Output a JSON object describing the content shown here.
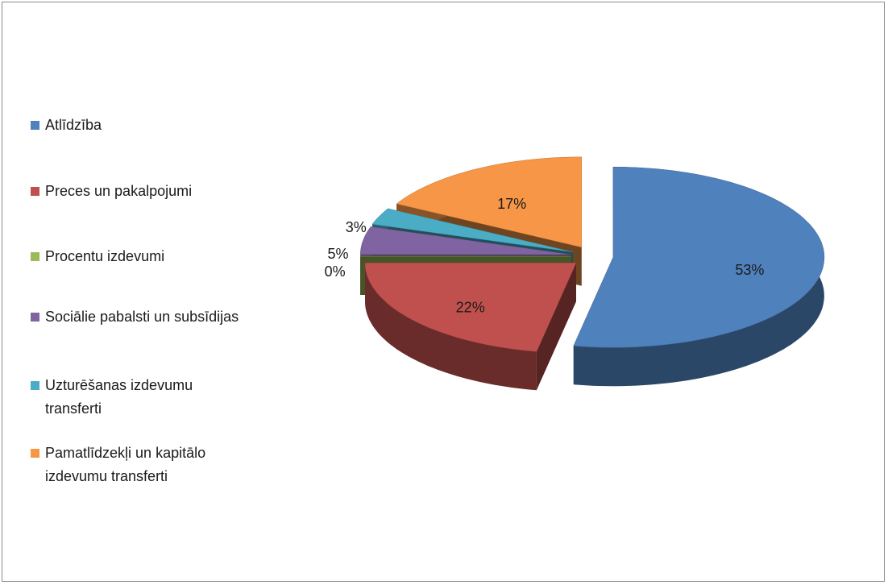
{
  "chart_data": {
    "type": "pie",
    "categories": [
      "Atlīdzība",
      "Preces un pakalpojumi",
      "Procentu izdevumi",
      "Sociālie pabalsti un subsīdijas",
      "Uzturēšanas izdevumu transferti",
      "Pamatlīdzekļi un kapitālo izdevumu transferti"
    ],
    "values": [
      53,
      22,
      0,
      5,
      3,
      17
    ],
    "value_labels": [
      "53%",
      "22%",
      "0%",
      "5%",
      "3%",
      "17%"
    ],
    "colors": [
      "#4f81bd",
      "#c0504d",
      "#9bbb59",
      "#8064a2",
      "#4bacc6",
      "#f79646"
    ],
    "legend": "left",
    "three_d": true,
    "exploded": true
  }
}
